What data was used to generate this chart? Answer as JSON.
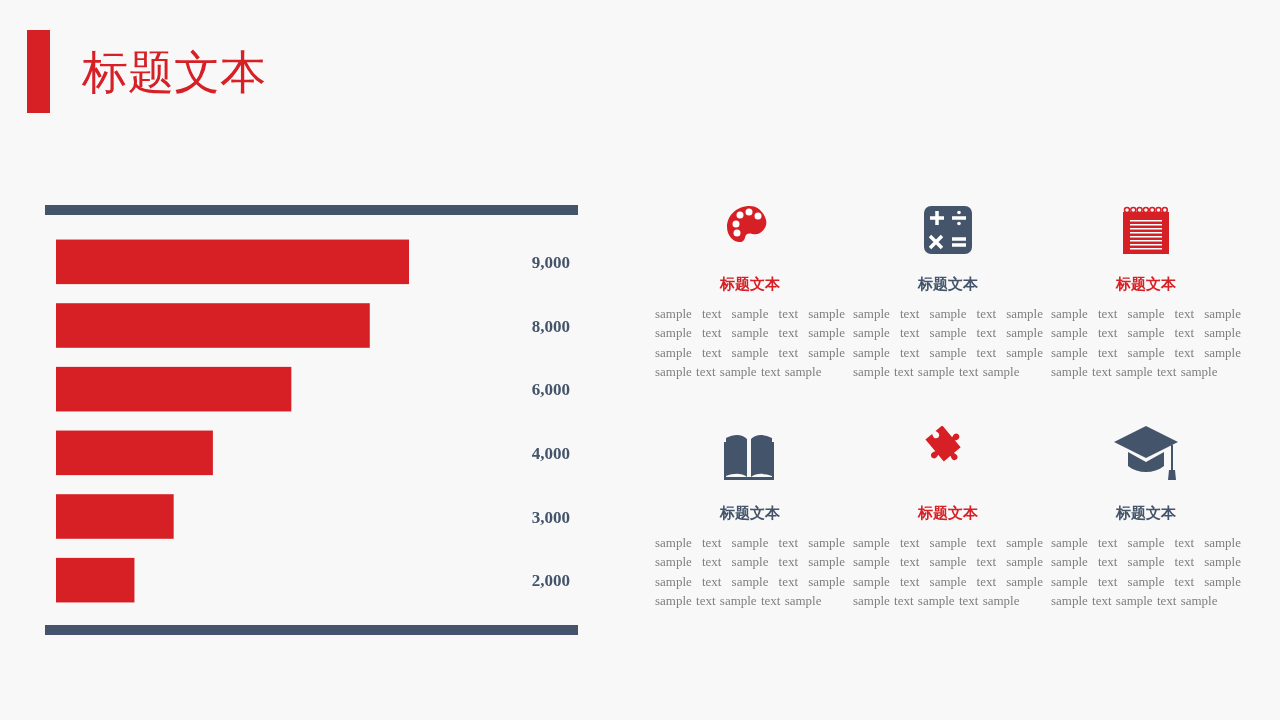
{
  "chart_data": [
    {
      "type": "bar",
      "orientation": "horizontal",
      "title": "标题文本",
      "categories": [
        null,
        null,
        null,
        null,
        null,
        null
      ],
      "values": [
        9000,
        8000,
        6000,
        4000,
        3000,
        2000
      ],
      "color": "#d71f26",
      "data_labels": true,
      "value_labels": [
        "9,000",
        "8,000",
        "6,000",
        "4,000",
        "3,000",
        "2,000"
      ]
    },
    {
      "type": "other",
      "colors": [
        "#d71f26",
        "#44546a",
        "#d71f26",
        "#44546a",
        "#d71f26",
        "#44546a"
      ],
      "annotations": [
        "标题文本",
        "sample text sample text sample sample text sample text sample sample text sample text sample sample text sample text sample",
        "标题文本",
        "sample text sample text sample sample text sample text sample sample text sample text sample sample text sample text sample",
        "标题文本",
        "sample text sample text sample sample text sample text sample sample text sample text sample sample text sample text sample",
        "标题文本",
        "sample text sample text sample sample text sample text sample sample text sample text sample sample text sample text sample",
        "标题文本",
        "sample text sample text sample sample text sample text sample sample text sample text sample sample text sample text sample",
        "标题文本",
        "sample text sample text sample sample text sample text sample sample text sample text sample sample text sample text sample"
      ]
    }
  ]
}
